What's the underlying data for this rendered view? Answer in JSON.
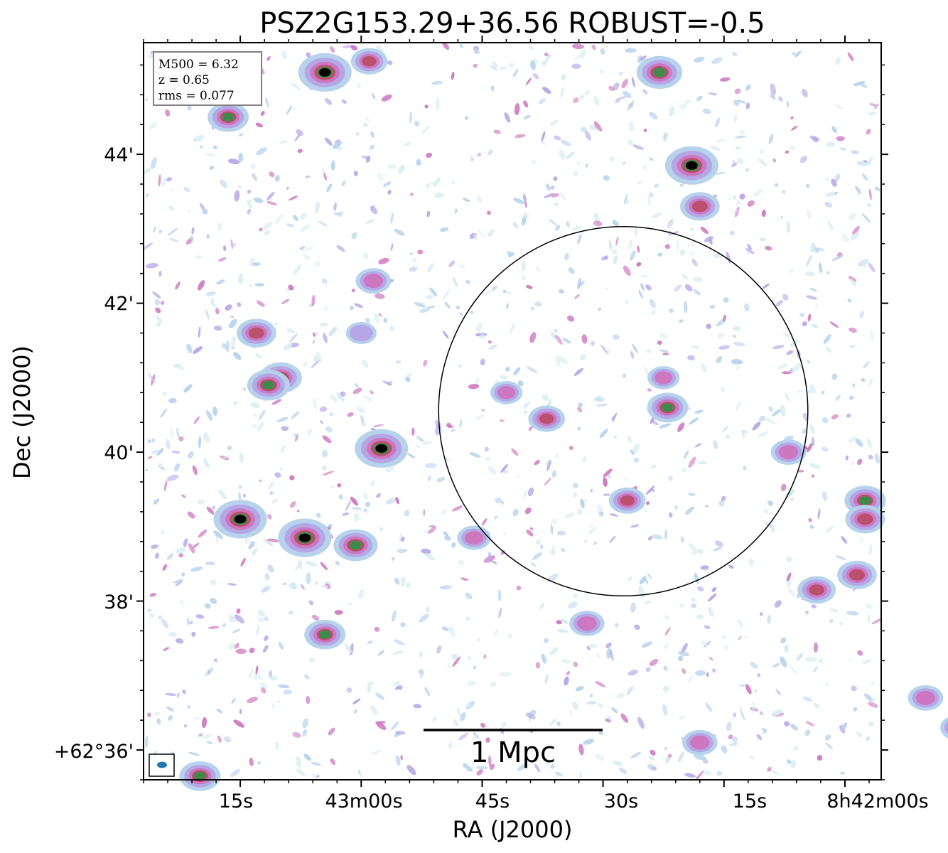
{
  "chart_data": {
    "type": "heatmap",
    "title": "PSZ2G153.29+36.56 ROBUST=-0.5",
    "xlabel": "RA (J2000)",
    "ylabel": "Dec (J2000)",
    "x_ticks": [
      "15s",
      "43m00s",
      "45s",
      "30s",
      "15s",
      "8h42m00s"
    ],
    "y_ticks": [
      "+62°36'",
      "38'",
      "40'",
      "42'",
      "44'"
    ],
    "x_tick_values_sec_ra": [
      15,
      0,
      -15,
      -30,
      -45,
      -60
    ],
    "y_tick_values_arcmin": [
      36,
      38,
      40,
      42,
      44
    ],
    "xlim_sec_ra": [
      27.0,
      -64.5
    ],
    "ylim_arcmin": [
      35.6,
      45.5
    ],
    "info_box": {
      "mass_line": "M500 = 6.32",
      "z_line": "z = 0.65",
      "rms_line": "rms = 0.077"
    },
    "scalebar_label": "1 Mpc",
    "circle": {
      "center_sec_ra": -32.5,
      "center_arcmin": 40.55,
      "radius_arcmin": 2.48
    },
    "colormap": [
      "#ffffff",
      "#d9eef2",
      "#b7d3ec",
      "#b6a6e6",
      "#cc77bf",
      "#bb4f6e",
      "#3f8a4a",
      "#000000"
    ],
    "sources": [
      {
        "ra": 4.5,
        "dec": 45.1,
        "peak": 1.0
      },
      {
        "ra": -1.0,
        "dec": 45.25,
        "peak": 0.6
      },
      {
        "ra": -37.0,
        "dec": 45.1,
        "peak": 0.9
      },
      {
        "ra": 16.5,
        "dec": 44.5,
        "peak": 0.75
      },
      {
        "ra": -41.0,
        "dec": 43.85,
        "peak": 1.0
      },
      {
        "ra": -42.0,
        "dec": 43.3,
        "peak": 0.7
      },
      {
        "ra": -1.5,
        "dec": 42.3,
        "peak": 0.55
      },
      {
        "ra": 13.0,
        "dec": 41.6,
        "peak": 0.7
      },
      {
        "ra": 10.0,
        "dec": 41.0,
        "peak": 0.8
      },
      {
        "ra": 11.5,
        "dec": 40.9,
        "peak": 0.8
      },
      {
        "ra": -2.5,
        "dec": 40.05,
        "peak": 1.0
      },
      {
        "ra": -38.0,
        "dec": 40.6,
        "peak": 0.75
      },
      {
        "ra": -23.0,
        "dec": 40.45,
        "peak": 0.6
      },
      {
        "ra": -53.0,
        "dec": 40.0,
        "peak": 0.55
      },
      {
        "ra": 15.0,
        "dec": 39.1,
        "peak": 1.0
      },
      {
        "ra": 7.0,
        "dec": 38.85,
        "peak": 1.0
      },
      {
        "ra": 0.7,
        "dec": 38.75,
        "peak": 0.85
      },
      {
        "ra": -33.0,
        "dec": 39.35,
        "peak": 0.6
      },
      {
        "ra": -62.5,
        "dec": 39.35,
        "peak": 0.75
      },
      {
        "ra": -62.5,
        "dec": 39.1,
        "peak": 0.7
      },
      {
        "ra": -61.5,
        "dec": 38.35,
        "peak": 0.7
      },
      {
        "ra": -56.5,
        "dec": 38.15,
        "peak": 0.65
      },
      {
        "ra": 4.5,
        "dec": 37.55,
        "peak": 0.75
      },
      {
        "ra": -28.0,
        "dec": 37.7,
        "peak": 0.55
      },
      {
        "ra": -70.0,
        "dec": 36.7,
        "peak": 0.55
      },
      {
        "ra": -74.0,
        "dec": 36.3,
        "peak": 0.55
      },
      {
        "ra": -42.0,
        "dec": 36.1,
        "peak": 0.55
      },
      {
        "ra": 20.0,
        "dec": 35.65,
        "peak": 0.75
      },
      {
        "ra": -14.0,
        "dec": 38.85,
        "peak": 0.5
      },
      {
        "ra": -18.0,
        "dec": 40.8,
        "peak": 0.45
      },
      {
        "ra": 0.0,
        "dec": 41.6,
        "peak": 0.4
      },
      {
        "ra": -37.5,
        "dec": 41.0,
        "peak": 0.45
      }
    ]
  },
  "beam": {
    "color": "#1f77b4"
  }
}
